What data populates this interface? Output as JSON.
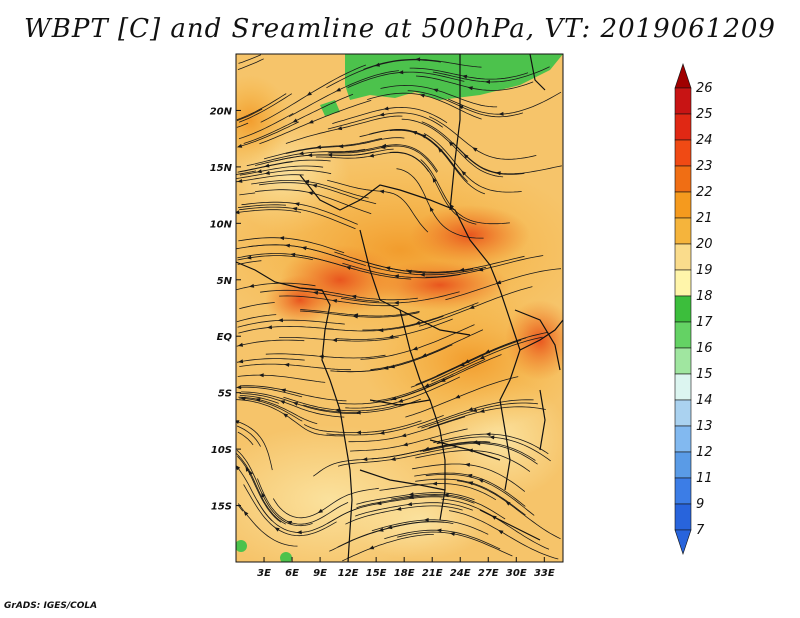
{
  "title": "WBPT [C] and Sreamline at 500hPa, VT: 2019061209",
  "footer": "GrADS: IGES/COLA",
  "map": {
    "lon_ticks": [
      "3E",
      "6E",
      "9E",
      "12E",
      "15E",
      "18E",
      "21E",
      "24E",
      "27E",
      "30E",
      "33E"
    ],
    "lat_ticks": [
      "20N",
      "15N",
      "10N",
      "5N",
      "EQ",
      "5S",
      "10S",
      "15S"
    ],
    "lon_range": [
      0,
      35
    ],
    "lat_range": [
      -20,
      25
    ]
  },
  "colorbar": {
    "levels": [
      "26",
      "25",
      "24",
      "23",
      "22",
      "21",
      "20",
      "19",
      "18",
      "17",
      "16",
      "15",
      "14",
      "13",
      "12",
      "11",
      "9",
      "7"
    ],
    "colors": [
      "#a00000",
      "#c81414",
      "#e02814",
      "#f04a14",
      "#f06e14",
      "#f59a1e",
      "#f5b43c",
      "#fadc8c",
      "#fff5aa",
      "#3cbe3c",
      "#64d264",
      "#a0e6a0",
      "#dcf5f0",
      "#aad2f0",
      "#82b9f0",
      "#5a9be6",
      "#3c7de6",
      "#2864dc"
    ]
  }
}
